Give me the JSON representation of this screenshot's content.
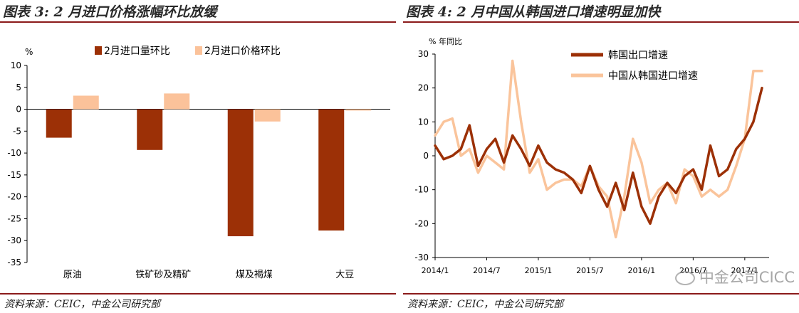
{
  "left": {
    "title": "图表 3: 2 月进口价格涨幅环比放缓",
    "source": "资料来源：CEIC，中金公司研究部",
    "chart_data": {
      "type": "bar",
      "ylabel": "%",
      "ylim": [
        -35,
        10
      ],
      "yticks": [
        10,
        5,
        0,
        -5,
        -10,
        -15,
        -20,
        -25,
        -30,
        -35
      ],
      "categories": [
        "原油",
        "铁矿砂及精矿",
        "煤及褐煤",
        "大豆"
      ],
      "series": [
        {
          "name": "2月进口量环比",
          "color": "#9c3006",
          "values": [
            -6.5,
            -9.3,
            -29.0,
            -27.7
          ]
        },
        {
          "name": "2月进口价格环比",
          "color": "#fbc29a",
          "values": [
            3.1,
            3.6,
            -2.8,
            -0.3
          ]
        }
      ],
      "legend_position": "top"
    }
  },
  "right": {
    "title": "图表 4: 2 月中国从韩国进口增速明显加快",
    "source": "资料来源：CEIC，中金公司研究部",
    "chart_data": {
      "type": "line",
      "ylabel": "% 年同比",
      "ylim": [
        -30,
        30
      ],
      "yticks": [
        30,
        20,
        10,
        0,
        -10,
        -20,
        -30
      ],
      "xlabels": [
        "2014/1",
        "2014/7",
        "2015/1",
        "2015/7",
        "2016/1",
        "2016/7",
        "2017/1"
      ],
      "x_start": "2014/1",
      "x_end": "2017/2",
      "series": [
        {
          "name": "韩国出口增速",
          "color": "#9c3006",
          "values": [
            3,
            -1,
            0,
            2,
            9,
            -3,
            2,
            5,
            -2,
            6,
            2,
            -3,
            3,
            -2,
            -4,
            -5,
            -7,
            -11,
            -3,
            -10,
            -15,
            -8,
            -16,
            -5,
            -15,
            -20,
            -12,
            -8,
            -11,
            -6,
            -4,
            -10,
            3,
            -6,
            -4,
            2,
            5,
            10,
            20
          ]
        },
        {
          "name": "中国从韩国进口增速",
          "color": "#fac49b",
          "values": [
            6,
            10,
            11,
            0,
            2,
            -5,
            0,
            -2,
            -4,
            28,
            10,
            -5,
            -1,
            -10,
            -8,
            -7,
            -7,
            -9,
            -3,
            -9,
            -12,
            -24,
            -12,
            5,
            -2,
            -14,
            -10,
            -8,
            -14,
            -4,
            -6,
            -12,
            -10,
            -12,
            -10,
            -3,
            5,
            25,
            25
          ]
        }
      ],
      "legend_position": "top-left"
    },
    "watermark": "中金公司CICC"
  }
}
